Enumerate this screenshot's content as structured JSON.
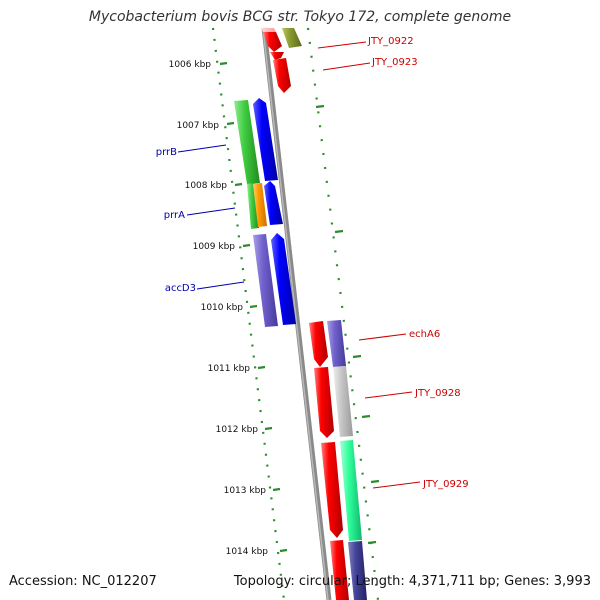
{
  "title": "Mycobacterium bovis BCG str. Tokyo 172, complete genome",
  "footer": {
    "accession": "Accession: NC_012207",
    "summary": "Topology: circular; Length: 4,371,711 bp; Genes: 3,993"
  },
  "colors": {
    "backbone": "#8a8a8a",
    "gc_skew_dots": "#2e8b2e",
    "left_labels": "#0000aa",
    "right_labels": "#cc0000"
  },
  "scale_labels": [
    "1006 kbp",
    "1007 kbp",
    "1008 kbp",
    "1009 kbp",
    "1010 kbp",
    "1011 kbp",
    "1012 kbp",
    "1013 kbp",
    "1014 kbp"
  ],
  "gene_labels_left": [
    "prrB",
    "prrA",
    "accD3"
  ],
  "gene_labels_right": [
    "JTY_0922",
    "JTY_0923",
    "echA6",
    "JTY_0928",
    "JTY_0929"
  ]
}
